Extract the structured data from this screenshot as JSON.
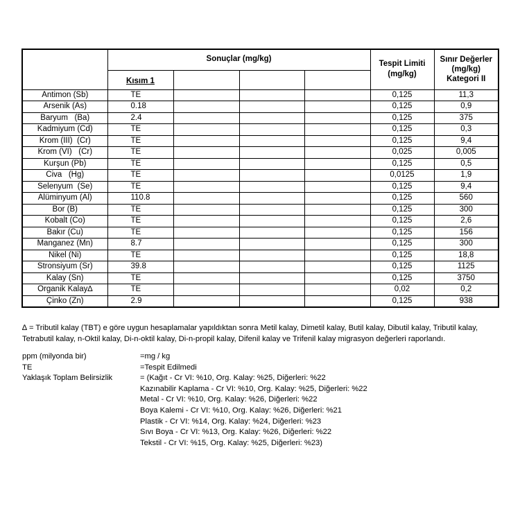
{
  "table": {
    "header_results": "Sonuçlar (mg/kg)",
    "header_part": "Kısım 1",
    "header_detection": "Tespit Limiti (mg/kg)",
    "header_limit": "Sınır Değerler (mg/kg) Kategori II",
    "rows": [
      {
        "element": "Antimon (Sb)",
        "result": "TE",
        "detection": "0,125",
        "limit": "11,3"
      },
      {
        "element": "Arsenik (As)",
        "result": "0.18",
        "detection": "0,125",
        "limit": "0,9"
      },
      {
        "element": "Baryum   (Ba)",
        "result": "2.4",
        "detection": "0,125",
        "limit": "375"
      },
      {
        "element": "Kadmiyum (Cd)",
        "result": "TE",
        "detection": "0,125",
        "limit": "0,3"
      },
      {
        "element": "Krom (III)  (Cr)",
        "result": "TE",
        "detection": "0,125",
        "limit": "9,4"
      },
      {
        "element": "Krom (VI)   (Cr)",
        "result": "TE",
        "detection": "0,025",
        "limit": "0,005"
      },
      {
        "element": "Kurşun (Pb)",
        "result": "TE",
        "detection": "0,125",
        "limit": "0,5"
      },
      {
        "element": "Civa   (Hg)",
        "result": "TE",
        "detection": "0,0125",
        "limit": "1,9"
      },
      {
        "element": "Selenyum  (Se)",
        "result": "TE",
        "detection": "0,125",
        "limit": "9,4"
      },
      {
        "element": "Alüminyum (Al)",
        "result": "110.8",
        "detection": "0,125",
        "limit": "560"
      },
      {
        "element": "Bor (B)",
        "result": "TE",
        "detection": "0,125",
        "limit": "300"
      },
      {
        "element": "Kobalt (Co)",
        "result": "TE",
        "detection": "0,125",
        "limit": "2,6"
      },
      {
        "element": "Bakır (Cu)",
        "result": "TE",
        "detection": "0,125",
        "limit": "156"
      },
      {
        "element": "Manganez (Mn)",
        "result": "8.7",
        "detection": "0,125",
        "limit": "300"
      },
      {
        "element": "Nikel (Ni)",
        "result": "TE",
        "detection": "0,125",
        "limit": "18,8"
      },
      {
        "element": "Stronsiyum (Sr)",
        "result": "39.8",
        "detection": "0,125",
        "limit": "1125"
      },
      {
        "element": "Kalay (Sn)",
        "result": "TE",
        "detection": "0,125",
        "limit": "3750"
      },
      {
        "element": "Organik Kalay∆",
        "result": "TE",
        "detection": "0,02",
        "limit": "0,2"
      },
      {
        "element": "Çinko (Zn)",
        "result": "2.9",
        "detection": "0,125",
        "limit": "938"
      }
    ]
  },
  "note": "∆ = Tributil kalay (TBT) e göre uygun hesaplamalar yapıldıktan sonra Metil kalay, Dimetil kalay, Butil kalay, Dibutil kalay, Tributil kalay, Tetrabutil kalay, n-Oktil kalay, Di-n-oktil kalay, Di-n-propil kalay, Difenil kalay ve Trifenil kalay migrasyon değerleri raporlandı.",
  "definitions": [
    {
      "key": "ppm (milyonda bir)",
      "value": "=mg / kg"
    },
    {
      "key": "TE",
      "value": "=Tespit Edilmedi"
    },
    {
      "key": "Yaklaşık Toplam Belirsizlik",
      "value": "= (Kağıt - Cr VI: %10, Org. Kalay: %25, Diğerleri: %22"
    },
    {
      "key": "",
      "value": "Kazınabilir Kaplama - Cr VI: %10, Org. Kalay: %25, Diğerleri: %22"
    },
    {
      "key": "",
      "value": "Metal - Cr VI: %10, Org. Kalay: %26, Diğerleri: %22"
    },
    {
      "key": "",
      "value": "Boya Kalemi - Cr VI: %10, Org. Kalay: %26, Diğerleri: %21"
    },
    {
      "key": "",
      "value": "Plastik - Cr VI: %14, Org. Kalay: %24, Diğerleri: %23"
    },
    {
      "key": "",
      "value": "Sıvı Boya - Cr VI: %13, Org. Kalay: %26, Diğerleri: %22"
    },
    {
      "key": "",
      "value": "Tekstil - Cr VI: %15, Org. Kalay: %25, Diğerleri: %23)"
    }
  ]
}
